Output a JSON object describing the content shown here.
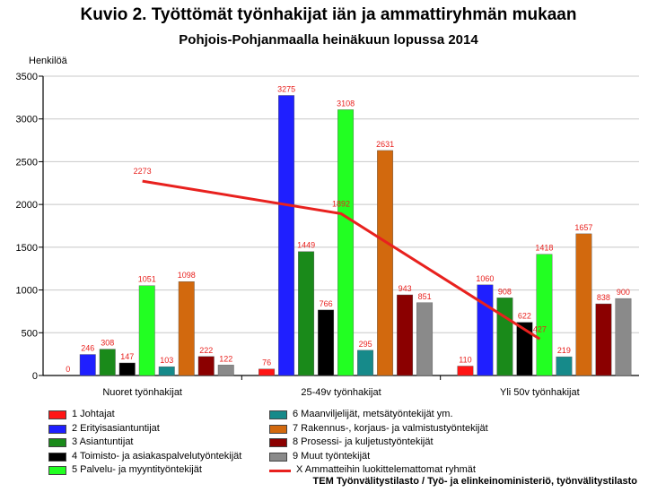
{
  "title": "Kuvio 2. Työttömät työnhakijat iän ja ammattiryhmän mukaan",
  "subtitle": "Pohjois-Pohjanmaalla heinäkuun lopussa 2014",
  "source": "TEM Työnvälitystilasto / Työ- ja elinkeinoministeriö, työnvälitystilasto",
  "chart_data": {
    "type": "bar",
    "ylabel": "Henkilöä",
    "ylim": [
      0,
      3500
    ],
    "yticks": [
      0,
      500,
      1000,
      1500,
      2000,
      2500,
      3000,
      3500
    ],
    "ytick_labels": [
      "0",
      "500",
      "1000",
      "1500",
      "2000",
      "2500",
      "3000",
      "3500"
    ],
    "grid": true,
    "categories": [
      "Nuoret työnhakijat",
      "25-49v työnhakijat",
      "Yli 50v työnhakijat"
    ],
    "series": [
      {
        "name": "1 Johtajat",
        "color": "#ff1515",
        "values": [
          0,
          76,
          110
        ]
      },
      {
        "name": "2 Erityisasiantuntijat",
        "color": "#1f1fff",
        "values": [
          246,
          3275,
          1060
        ]
      },
      {
        "name": "3 Asiantuntijat",
        "color": "#1a8a1a",
        "values": [
          308,
          1449,
          908
        ]
      },
      {
        "name": "4 Toimisto- ja asiakaspalvelutyöntekijät",
        "color": "#000000",
        "values": [
          147,
          766,
          622
        ]
      },
      {
        "name": "5 Palvelu- ja myyntityöntekijät",
        "color": "#22ff22",
        "values": [
          1051,
          3108,
          1418
        ]
      },
      {
        "name": "6 Maanviljelijät, metsätyöntekijät ym.",
        "color": "#168a8a",
        "values": [
          103,
          295,
          219
        ]
      },
      {
        "name": "7 Rakennus-, korjaus- ja valmistustyöntekijät",
        "color": "#d2690e",
        "values": [
          1098,
          2631,
          1657
        ]
      },
      {
        "name": "8 Prosessi- ja kuljetustyöntekijät",
        "color": "#8b0000",
        "values": [
          222,
          943,
          838
        ]
      },
      {
        "name": "9 Muut työntekijät",
        "color": "#8a8a8a",
        "values": [
          122,
          851,
          900
        ]
      }
    ],
    "line_series": {
      "name": "X Ammatteihin luokittelemattomat ryhmät",
      "color": "#e8211e",
      "values": [
        2273,
        1892,
        427
      ]
    },
    "data_label_color": "#e8211e"
  }
}
